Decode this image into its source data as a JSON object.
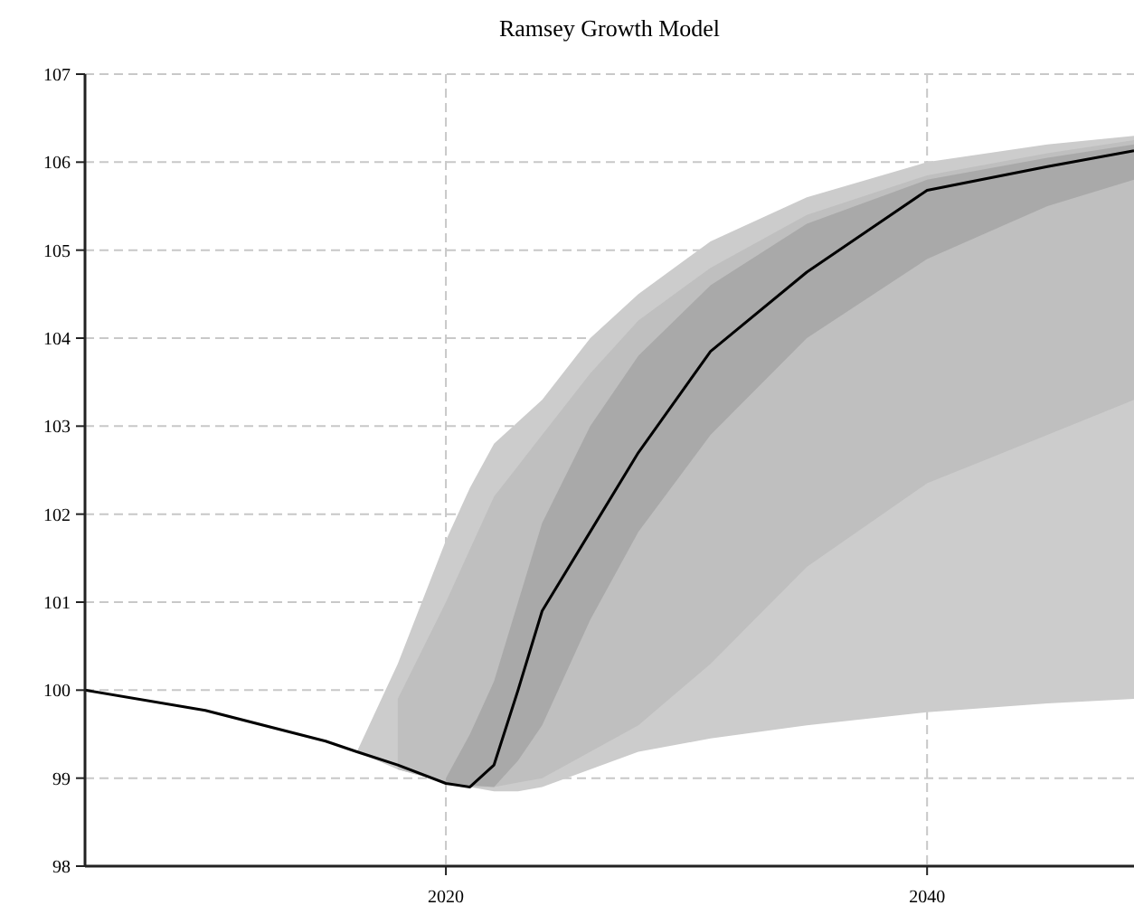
{
  "chart_data": {
    "type": "line",
    "title": "Ramsey Growth Model",
    "xlim": [
      2005,
      2048.6
    ],
    "xticks": [
      2020,
      2040
    ],
    "ylim": [
      98,
      107
    ],
    "yticks": [
      98,
      99,
      100,
      101,
      102,
      103,
      104,
      105,
      106,
      107
    ],
    "grid": true,
    "x": [
      2005,
      2010,
      2015,
      2016.3,
      2018,
      2020,
      2021,
      2022,
      2023,
      2024,
      2026,
      2028,
      2031,
      2035,
      2040,
      2045,
      2048.6
    ],
    "series": [
      {
        "color": "#000000",
        "values": [
          100,
          99.77,
          99.42,
          99.3,
          99.15,
          98.94,
          98.9,
          99.15,
          100.0,
          100.9,
          101.8,
          102.7,
          103.85,
          104.75,
          105.68,
          105.95,
          106.13
        ],
        "lower": [
          null,
          null,
          null,
          99.3,
          99.1,
          98.95,
          98.9,
          98.85,
          98.85,
          98.9,
          99.1,
          99.3,
          99.45,
          99.6,
          99.75,
          99.85,
          99.9
        ],
        "upper": [
          null,
          null,
          null,
          99.3,
          100.3,
          101.7,
          102.3,
          102.8,
          103.05,
          103.3,
          104.0,
          104.5,
          105.1,
          105.6,
          106.0,
          106.2,
          106.3
        ]
      },
      {
        "color": "#bfbfbf",
        "values": [
          null,
          null,
          null,
          null,
          null,
          null,
          null,
          null,
          null,
          null,
          null,
          null,
          null,
          null,
          null,
          null,
          null
        ],
        "lower": [
          null,
          null,
          null,
          null,
          99.1,
          98.95,
          98.9,
          98.9,
          98.95,
          99.0,
          99.3,
          99.6,
          100.3,
          101.4,
          102.35,
          102.9,
          103.3
        ],
        "upper": [
          null,
          null,
          null,
          null,
          99.9,
          101.0,
          101.6,
          102.2,
          102.55,
          102.9,
          103.6,
          104.2,
          104.8,
          105.4,
          105.85,
          106.1,
          106.25
        ]
      },
      {
        "color": "#a9a9a9",
        "values": [
          null,
          null,
          null,
          null,
          null,
          null,
          null,
          null,
          null,
          null,
          null,
          null,
          null,
          null,
          null,
          null,
          null
        ],
        "lower": [
          null,
          null,
          null,
          null,
          null,
          98.95,
          98.92,
          98.9,
          99.2,
          99.6,
          100.8,
          101.8,
          102.9,
          104.0,
          104.9,
          105.5,
          105.8
        ],
        "upper": [
          null,
          null,
          null,
          null,
          null,
          99.0,
          99.5,
          100.1,
          101.0,
          101.9,
          103.0,
          103.8,
          104.6,
          105.3,
          105.8,
          106.05,
          106.2
        ]
      }
    ]
  }
}
